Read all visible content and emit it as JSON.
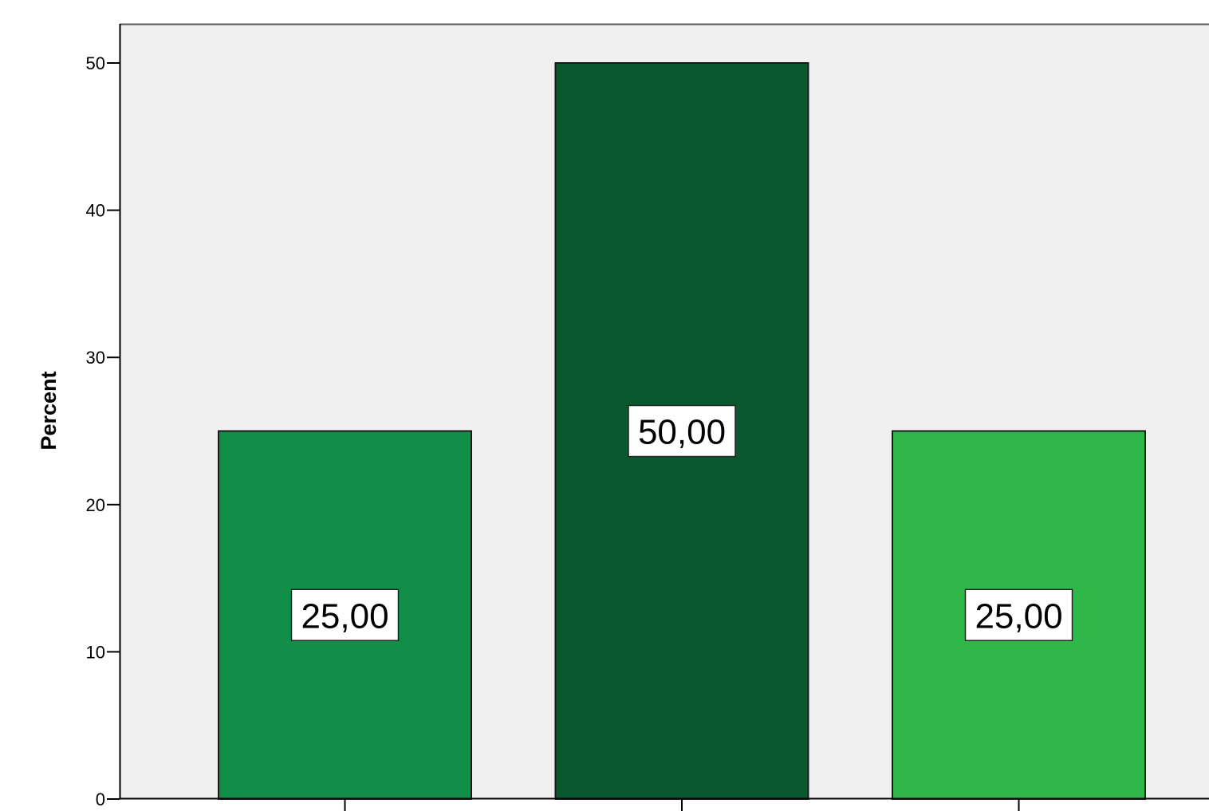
{
  "chart_data": {
    "type": "bar",
    "title": "",
    "xlabel": "",
    "ylabel": "Percent",
    "ylim": [
      0,
      52.5
    ],
    "yticks": [
      0,
      10,
      20,
      30,
      40,
      50
    ],
    "grid": false,
    "legend": "none",
    "categories": [
      "",
      "",
      ""
    ],
    "values": [
      25,
      50,
      25
    ],
    "data_labels": [
      "25,00",
      "50,00",
      "25,00"
    ],
    "colors": [
      "#118E48",
      "#0A582E",
      "#2FB749"
    ],
    "plot_background": "#F0F0F0"
  }
}
